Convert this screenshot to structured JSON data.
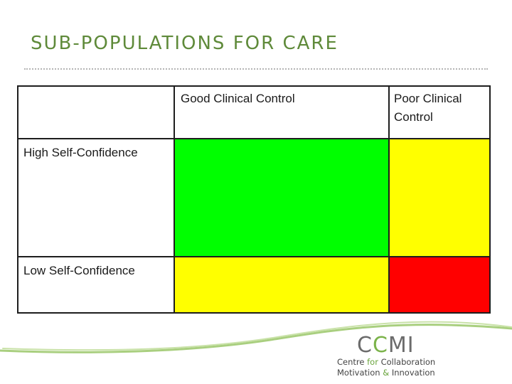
{
  "slide": {
    "title": "SUB-POPULATIONS FOR CARE"
  },
  "matrix": {
    "corner": "",
    "columns": [
      "Good Clinical Control",
      "Poor Clinical Control"
    ],
    "rows": [
      {
        "label": "High Self-Confidence",
        "cells": [
          {
            "color": "#00ff00",
            "status": "green"
          },
          {
            "color": "#ffff00",
            "status": "yellow"
          }
        ]
      },
      {
        "label": "Low Self-Confidence",
        "cells": [
          {
            "color": "#ffff00",
            "status": "yellow"
          },
          {
            "color": "#ff0000",
            "status": "red"
          }
        ]
      }
    ]
  },
  "logo": {
    "mark_prefix": "C",
    "mark_accent": "C",
    "mark_suffix": "MI",
    "line1_start": "Centre ",
    "line1_for": "for",
    "line1_end": " Collaboration",
    "line2_start": "Motivation ",
    "line2_amp": "&",
    "line2_end": " Innovation"
  },
  "colors": {
    "title": "#5f8a3a",
    "swoosh": "#a9cf7f",
    "logo_accent": "#7bb34a"
  }
}
